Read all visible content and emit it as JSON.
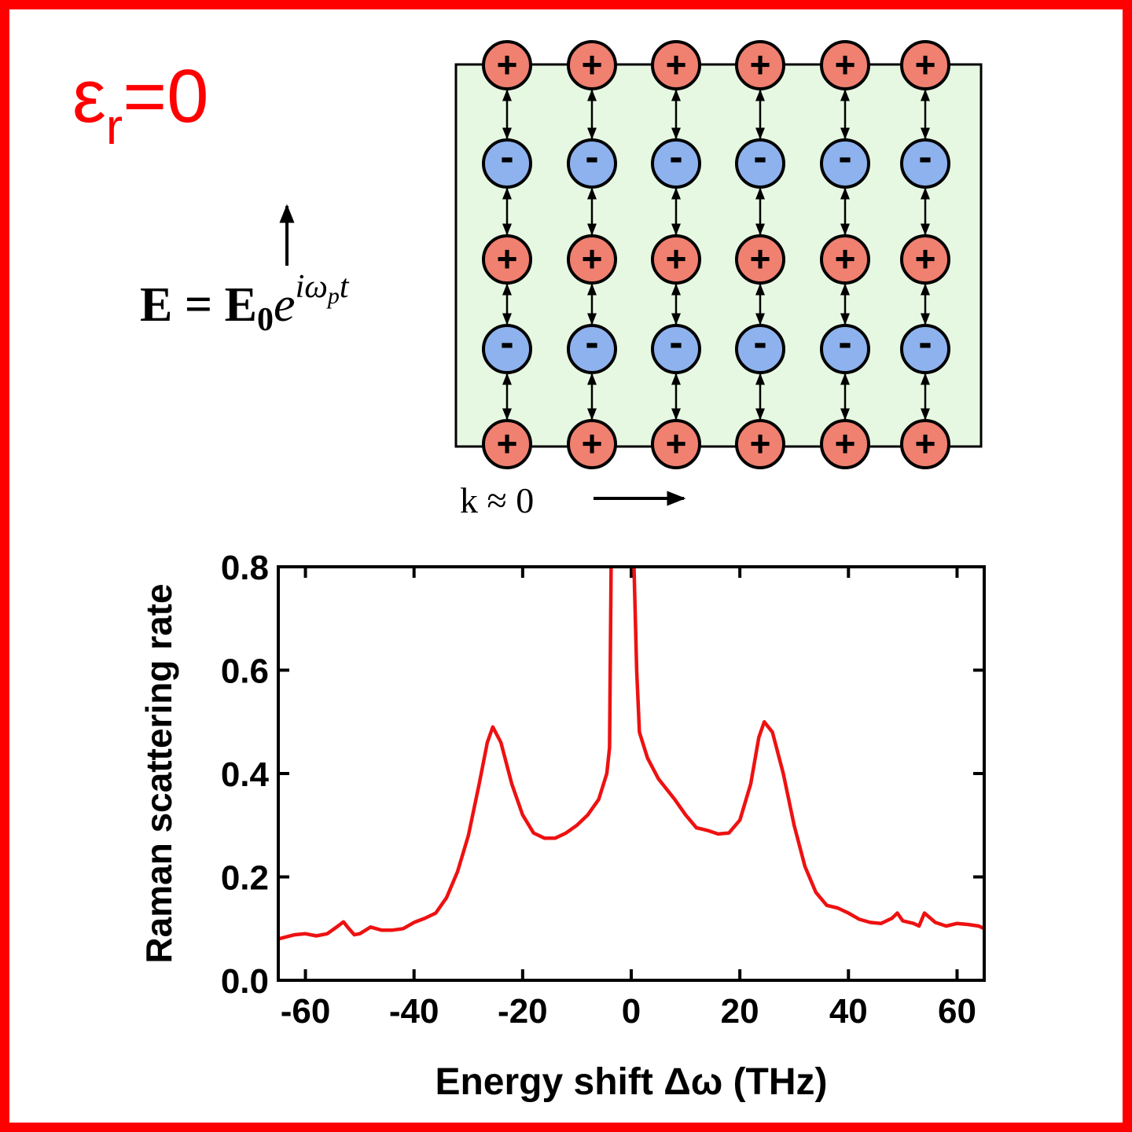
{
  "diagram": {
    "title": {
      "base": "ε",
      "sub": "r",
      "rest": "=0"
    },
    "field": {
      "base": "E = E",
      "sub": "0",
      "exp": "e",
      "sup": "iω",
      "sup_sub": "p",
      "sup_tail": "t"
    },
    "wave": "k ≈ 0",
    "plus": "+",
    "minus": "-"
  },
  "chart_data": {
    "type": "line",
    "x_label": "Energy shift Δω (THz)",
    "y_label": "Raman scattering rate",
    "xlim": [
      -65,
      65
    ],
    "ylim": [
      0,
      0.8
    ],
    "xticks": [
      -60,
      -40,
      -20,
      0,
      20,
      40,
      60
    ],
    "yticks": [
      {
        "value": 0,
        "label": "0.0"
      },
      0.2,
      0.4,
      0.6,
      0.8
    ],
    "series": [
      {
        "name": "Raman",
        "color": "#ee1111",
        "x": [
          -65,
          -62,
          -60,
          -58,
          -56,
          -54,
          -53,
          -52,
          -51,
          -50,
          -48,
          -46,
          -44,
          -42,
          -40,
          -38,
          -36,
          -34,
          -32,
          -30,
          -28,
          -26.5,
          -25.5,
          -24,
          -22,
          -20,
          -18,
          -16,
          -14,
          -12,
          -10,
          -8,
          -6,
          -4.5,
          -4,
          -3.7,
          -1.5,
          0.5,
          1,
          1.5,
          3,
          5,
          8,
          10,
          12,
          14,
          16,
          18,
          20,
          22,
          23.5,
          24.5,
          26,
          28,
          30,
          32,
          34,
          36,
          38,
          40,
          42,
          44,
          46,
          48,
          49,
          50,
          52,
          53,
          54,
          56,
          58,
          60,
          62,
          64,
          65
        ],
        "values": [
          0.08,
          0.088,
          0.09,
          0.086,
          0.09,
          0.105,
          0.113,
          0.1,
          0.088,
          0.09,
          0.103,
          0.097,
          0.097,
          0.1,
          0.112,
          0.12,
          0.13,
          0.16,
          0.21,
          0.28,
          0.38,
          0.46,
          0.49,
          0.46,
          0.38,
          0.32,
          0.285,
          0.275,
          0.275,
          0.285,
          0.3,
          0.32,
          0.35,
          0.4,
          0.45,
          0.8,
          null,
          0.8,
          0.6,
          0.48,
          0.43,
          0.39,
          0.35,
          0.32,
          0.295,
          0.29,
          0.283,
          0.285,
          0.31,
          0.38,
          0.47,
          0.5,
          0.48,
          0.4,
          0.3,
          0.22,
          0.17,
          0.145,
          0.14,
          0.13,
          0.118,
          0.112,
          0.11,
          0.12,
          0.13,
          0.115,
          0.11,
          0.105,
          0.13,
          0.112,
          0.105,
          0.11,
          0.108,
          0.105,
          0.1
        ]
      }
    ]
  }
}
